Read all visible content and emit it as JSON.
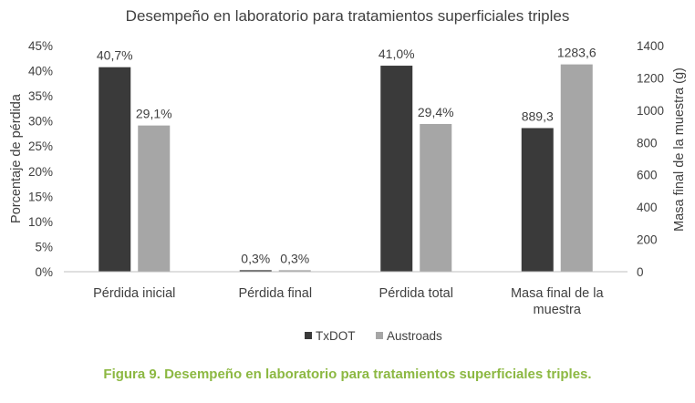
{
  "chart_data": {
    "type": "bar",
    "title": "Desempeño en laboratorio para tratamientos superficiales triples",
    "categories": [
      [
        "Pérdida inicial"
      ],
      [
        "Pérdida final"
      ],
      [
        "Pérdida total"
      ],
      [
        "Masa final de la",
        "muestra"
      ]
    ],
    "series": [
      {
        "name": "TxDOT",
        "color": "#3a3a3a",
        "values": [
          40.7,
          0.3,
          41.0,
          889.3
        ],
        "labels": [
          "40,7%",
          "0,3%",
          "41,0%",
          "889,3"
        ]
      },
      {
        "name": "Austroads",
        "color": "#a6a6a6",
        "values": [
          29.1,
          0.3,
          29.4,
          1283.6
        ],
        "labels": [
          "29,1%",
          "0,3%",
          "29,4%",
          "1283,6"
        ]
      }
    ],
    "y_left": {
      "label": "Porcentaje de pérdida",
      "ylim": [
        0,
        45
      ],
      "ticks": [
        0,
        5,
        10,
        15,
        20,
        25,
        30,
        35,
        40,
        45
      ],
      "tick_labels": [
        "0%",
        "5%",
        "10%",
        "15%",
        "20%",
        "25%",
        "30%",
        "35%",
        "40%",
        "45%"
      ]
    },
    "y_right": {
      "label": "Masa final de la muestra (g)",
      "ylim": [
        0,
        1400
      ],
      "ticks": [
        0,
        200,
        400,
        600,
        800,
        1000,
        1200,
        1400
      ],
      "tick_labels": [
        "0",
        "200",
        "400",
        "600",
        "800",
        "1000",
        "1200",
        "1400"
      ]
    },
    "secondary_axis_categories": [
      3
    ],
    "grid": false,
    "legend_position": "bottom"
  },
  "caption": "Figura 9. Desempeño en laboratorio para tratamientos superficiales triples."
}
